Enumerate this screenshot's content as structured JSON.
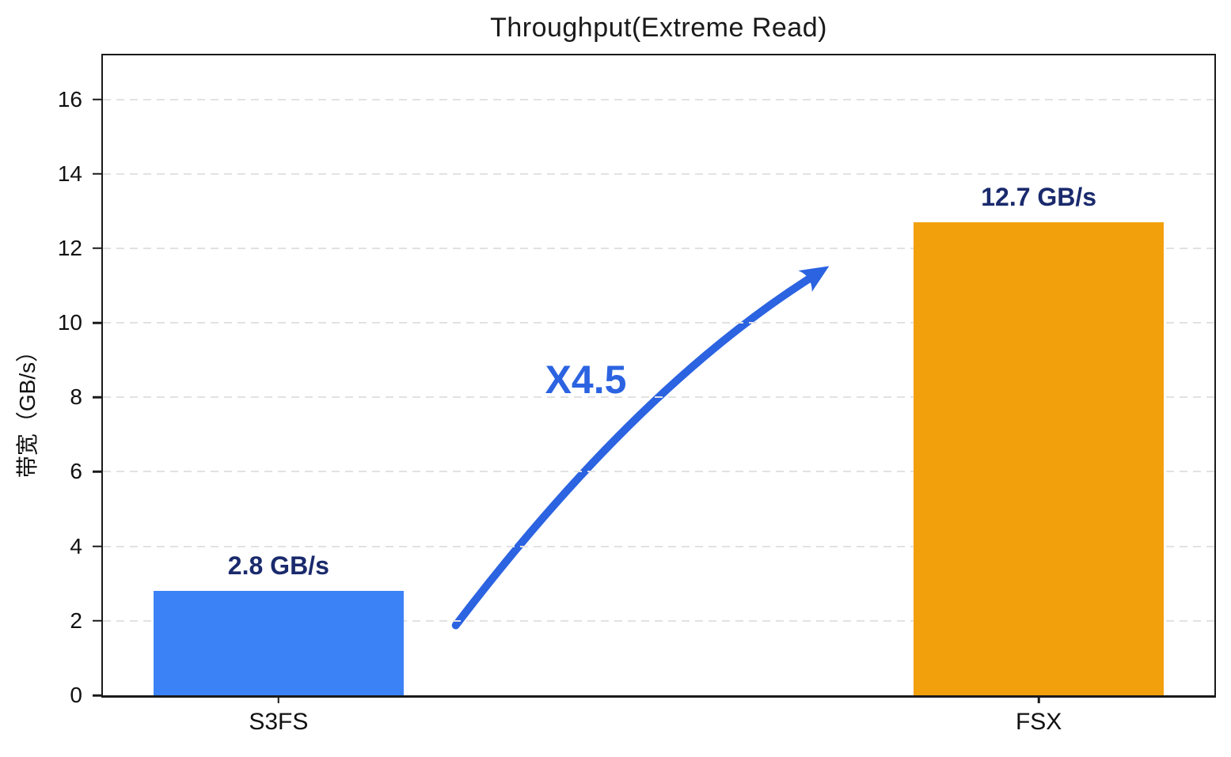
{
  "chart_data": {
    "type": "bar",
    "title": "Throughput(Extreme Read)",
    "xlabel": "",
    "ylabel": "带宽（GB/s）",
    "categories": [
      "S3FS",
      "FSX"
    ],
    "values": [
      2.8,
      12.7
    ],
    "data_labels": [
      "2.8 GB/s",
      "12.7 GB/s"
    ],
    "bar_colors": [
      "#3b82f6",
      "#f2a00c"
    ],
    "yticks": [
      0,
      2,
      4,
      6,
      8,
      10,
      12,
      14,
      16
    ],
    "ylim": [
      0,
      17.18
    ],
    "grid": "horizontal-dashed",
    "legend": "none",
    "annotation": {
      "text": "X4.5",
      "color": "#2b63e1",
      "shape": "curved-arrow-up-right"
    },
    "colors": {
      "data_label": "#1a2a6c",
      "axis": "#1a1a1a",
      "gridline": "#e2e2e2"
    }
  }
}
